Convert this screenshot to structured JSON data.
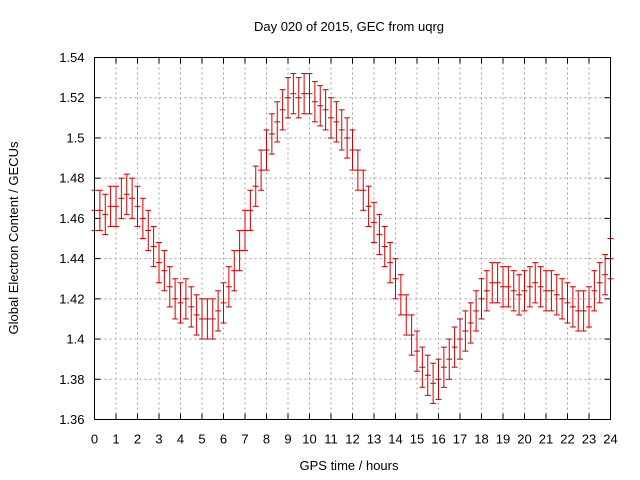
{
  "chart_data": {
    "type": "scatter",
    "title": "Day 020 of 2015, GEC from uqrg",
    "xlabel": "GPS time / hours",
    "ylabel": "Global Electron Content / GECUs",
    "xlim": [
      0,
      24
    ],
    "ylim": [
      1.36,
      1.54
    ],
    "x_ticks": [
      0,
      1,
      2,
      3,
      4,
      5,
      6,
      7,
      8,
      9,
      10,
      11,
      12,
      13,
      14,
      15,
      16,
      17,
      18,
      19,
      20,
      21,
      22,
      23,
      24
    ],
    "y_ticks": [
      1.36,
      1.38,
      1.4,
      1.42,
      1.44,
      1.46,
      1.48,
      1.5,
      1.52,
      1.54
    ],
    "y_tick_labels": [
      "1.36",
      "1.38",
      "1.4",
      "1.42",
      "1.44",
      "1.46",
      "1.48",
      "1.5",
      "1.52",
      "1.54"
    ],
    "grid": true,
    "series_color": "#cc0000",
    "error_bar": 0.01,
    "x": [
      0,
      0.25,
      0.5,
      0.75,
      1,
      1.25,
      1.5,
      1.75,
      2,
      2.25,
      2.5,
      2.75,
      3,
      3.25,
      3.5,
      3.75,
      4,
      4.25,
      4.5,
      4.75,
      5,
      5.25,
      5.5,
      5.75,
      6,
      6.25,
      6.5,
      6.75,
      7,
      7.25,
      7.5,
      7.75,
      8,
      8.25,
      8.5,
      8.75,
      9,
      9.25,
      9.5,
      9.75,
      10,
      10.25,
      10.5,
      10.75,
      11,
      11.25,
      11.5,
      11.75,
      12,
      12.25,
      12.5,
      12.75,
      13,
      13.25,
      13.5,
      13.75,
      14,
      14.25,
      14.5,
      14.75,
      15,
      15.25,
      15.5,
      15.75,
      16,
      16.25,
      16.5,
      16.75,
      17,
      17.25,
      17.5,
      17.75,
      18,
      18.25,
      18.5,
      18.75,
      19,
      19.25,
      19.5,
      19.75,
      20,
      20.25,
      20.5,
      20.75,
      21,
      21.25,
      21.5,
      21.75,
      22,
      22.25,
      22.5,
      22.75,
      23,
      23.25,
      23.5,
      23.75,
      24
    ],
    "y": [
      1.464,
      1.464,
      1.462,
      1.466,
      1.466,
      1.47,
      1.472,
      1.47,
      1.466,
      1.46,
      1.454,
      1.446,
      1.438,
      1.434,
      1.426,
      1.42,
      1.418,
      1.42,
      1.416,
      1.412,
      1.41,
      1.41,
      1.41,
      1.414,
      1.418,
      1.426,
      1.434,
      1.444,
      1.454,
      1.464,
      1.476,
      1.484,
      1.494,
      1.502,
      1.508,
      1.514,
      1.52,
      1.522,
      1.52,
      1.522,
      1.522,
      1.518,
      1.516,
      1.514,
      1.51,
      1.508,
      1.504,
      1.5,
      1.494,
      1.484,
      1.474,
      1.466,
      1.458,
      1.452,
      1.446,
      1.438,
      1.43,
      1.422,
      1.412,
      1.402,
      1.394,
      1.386,
      1.382,
      1.378,
      1.38,
      1.386,
      1.39,
      1.396,
      1.4,
      1.404,
      1.408,
      1.414,
      1.42,
      1.424,
      1.428,
      1.428,
      1.426,
      1.426,
      1.424,
      1.422,
      1.424,
      1.426,
      1.428,
      1.426,
      1.424,
      1.424,
      1.422,
      1.42,
      1.418,
      1.416,
      1.414,
      1.414,
      1.416,
      1.424,
      1.428,
      1.432,
      1.44
    ]
  }
}
